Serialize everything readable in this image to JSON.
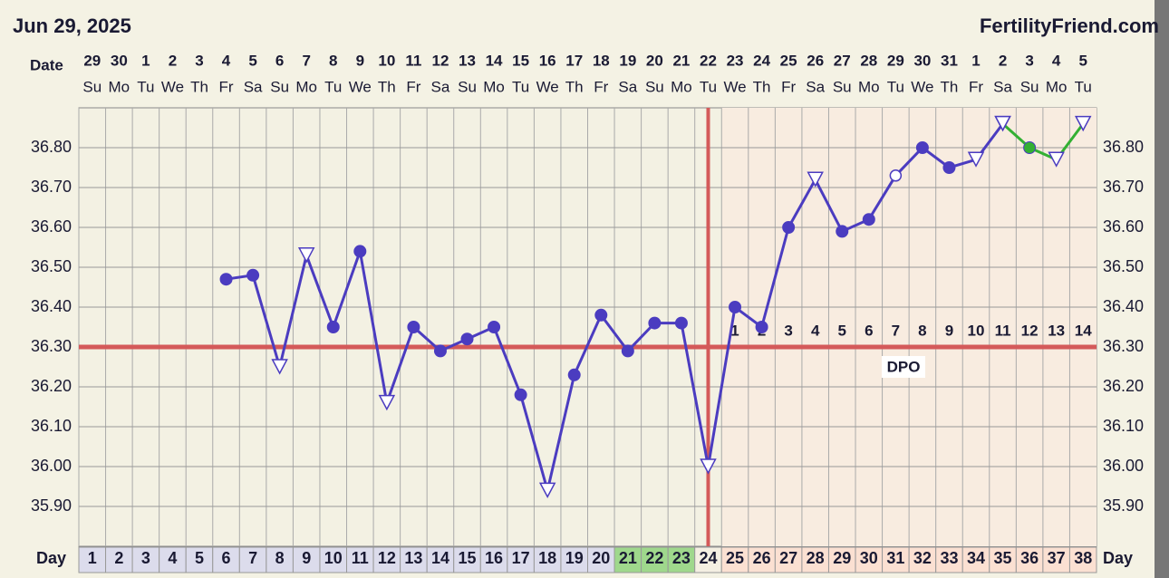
{
  "chart_data": {
    "type": "line",
    "title": "Jun 29, 2025",
    "site": "FertilityFriend.com",
    "date_label": "Date",
    "day_label": "Day",
    "dpo_label": "DPO",
    "categories": [
      "1",
      "2",
      "3",
      "4",
      "5",
      "6",
      "7",
      "8",
      "9",
      "10",
      "11",
      "12",
      "13",
      "14",
      "15",
      "16",
      "17",
      "18",
      "19",
      "20",
      "21",
      "22",
      "23",
      "24",
      "25",
      "26",
      "27",
      "28",
      "29",
      "30",
      "31",
      "32",
      "33",
      "34",
      "35",
      "36",
      "37",
      "38"
    ],
    "dates": [
      "29",
      "30",
      "1",
      "2",
      "3",
      "4",
      "5",
      "6",
      "7",
      "8",
      "9",
      "10",
      "11",
      "12",
      "13",
      "14",
      "15",
      "16",
      "17",
      "18",
      "19",
      "20",
      "21",
      "22",
      "23",
      "24",
      "25",
      "26",
      "27",
      "28",
      "29",
      "30",
      "31",
      "1",
      "2",
      "3",
      "4",
      "5"
    ],
    "weekdays": [
      "Su",
      "Mo",
      "Tu",
      "We",
      "Th",
      "Fr",
      "Sa",
      "Su",
      "Mo",
      "Tu",
      "We",
      "Th",
      "Fr",
      "Sa",
      "Su",
      "Mo",
      "Tu",
      "We",
      "Th",
      "Fr",
      "Sa",
      "Su",
      "Mo",
      "Tu",
      "We",
      "Th",
      "Fr",
      "Sa",
      "Su",
      "Mo",
      "Tu",
      "We",
      "Th",
      "Fr",
      "Sa",
      "Su",
      "Mo",
      "Tu"
    ],
    "dpo": [
      null,
      null,
      null,
      null,
      null,
      null,
      null,
      null,
      null,
      null,
      null,
      null,
      null,
      null,
      null,
      null,
      null,
      null,
      null,
      null,
      null,
      null,
      null,
      null,
      1,
      2,
      3,
      4,
      5,
      6,
      7,
      8,
      9,
      10,
      11,
      12,
      13,
      14
    ],
    "day_cell_colors": [
      "#dcdcec",
      "#dcdcec",
      "#dcdcec",
      "#dcdcec",
      "#dcdcec",
      "#dcdcec",
      "#dcdcec",
      "#dcdcec",
      "#dcdcec",
      "#dcdcec",
      "#dcdcec",
      "#dcdcec",
      "#dcdcec",
      "#dcdcec",
      "#dcdcec",
      "#dcdcec",
      "#dcdcec",
      "#dcdcec",
      "#dcdcec",
      "#dcdcec",
      "#9fd88c",
      "#9fd88c",
      "#9fd88c",
      "#f4efe2",
      "#fbe0d2",
      "#fbe0d2",
      "#fbe0d2",
      "#fbe0d2",
      "#fbe0d2",
      "#fbe0d2",
      "#fbe0d2",
      "#fbe0d2",
      "#fbe0d2",
      "#fbe0d2",
      "#fbe0d2",
      "#fbe0d2",
      "#fbe0d2",
      "#fbe0d2"
    ],
    "markers": [
      null,
      null,
      null,
      null,
      null,
      "dot",
      "dot",
      "tri",
      "tri",
      "dot",
      "dot",
      "tri",
      "dot",
      "dot",
      "dot",
      "dot",
      "dot",
      "tri",
      "dot",
      "dot",
      "dot",
      "dot",
      "dot",
      "tri",
      "dot",
      "dot",
      "dot",
      "tri",
      "dot",
      "dot",
      "open",
      "dot",
      "dot",
      "tri",
      "tri",
      "dot",
      "tri",
      "tri"
    ],
    "series": [
      {
        "color": "#4b3cc0",
        "values": [
          null,
          null,
          null,
          null,
          null,
          36.47,
          36.48,
          36.25,
          36.53,
          36.35,
          36.54,
          36.16,
          36.35,
          36.29,
          36.32,
          36.35,
          36.18,
          35.94,
          36.23,
          36.38,
          36.29,
          36.36,
          36.36,
          36.0,
          36.4,
          36.35,
          36.6,
          36.72,
          36.59,
          36.62,
          36.73,
          36.8,
          36.75,
          36.77,
          36.86,
          null,
          null,
          null
        ]
      },
      {
        "color": "#33b033",
        "values": [
          null,
          null,
          null,
          null,
          null,
          null,
          null,
          null,
          null,
          null,
          null,
          null,
          null,
          null,
          null,
          null,
          null,
          null,
          null,
          null,
          null,
          null,
          null,
          null,
          null,
          null,
          null,
          null,
          null,
          null,
          null,
          null,
          null,
          null,
          36.86,
          36.8,
          36.77,
          36.86
        ]
      }
    ],
    "marker_stroke": "#4b3cc0",
    "coverline": 36.3,
    "ovulation_day": 24,
    "line_color": "#d45a5a",
    "ylim": [
      35.8,
      36.9
    ],
    "yticks": [
      {
        "value": 35.9,
        "label": "35.90"
      },
      {
        "value": 36.0,
        "label": "36.00"
      },
      {
        "value": 36.1,
        "label": "36.10"
      },
      {
        "value": 36.2,
        "label": "36.20"
      },
      {
        "value": 36.3,
        "label": "36.30"
      },
      {
        "value": 36.4,
        "label": "36.40"
      },
      {
        "value": 36.5,
        "label": "36.50"
      },
      {
        "value": 36.6,
        "label": "36.60"
      },
      {
        "value": 36.7,
        "label": "36.70"
      },
      {
        "value": 36.8,
        "label": "36.80"
      }
    ],
    "grid": true
  }
}
